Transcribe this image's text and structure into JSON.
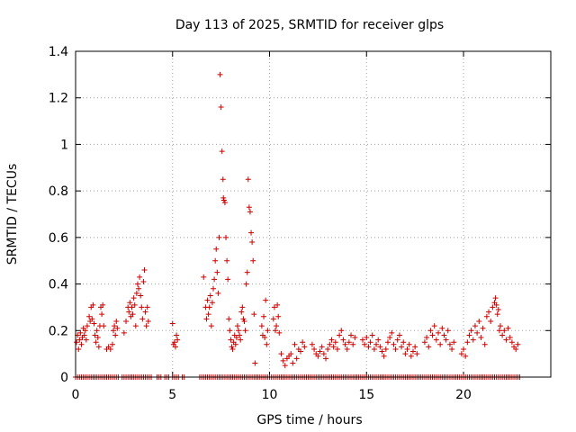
{
  "chart_data": {
    "type": "scatter",
    "title": "Day 113 of 2025, SRMTID for receiver glps",
    "xlabel": "GPS time / hours",
    "ylabel": "SRMTID / TECUs",
    "xlim": [
      0,
      24.5
    ],
    "ylim": [
      0,
      1.4
    ],
    "x_ticks": [
      0,
      5,
      10,
      15,
      20
    ],
    "x_tick_labels": [
      "0",
      "5",
      "10",
      "15",
      "20"
    ],
    "y_ticks": [
      0,
      0.2,
      0.4,
      0.6,
      0.8,
      1.0,
      1.2,
      1.4
    ],
    "y_tick_labels": [
      "0",
      "0.2",
      "0.4",
      "0.6",
      "0.8",
      "1",
      "1.2",
      "1.4"
    ],
    "grid": true,
    "marker": "+",
    "series": [
      {
        "name": "SRMTID",
        "color": "#cc0000",
        "points": [
          [
            0.05,
            0.15
          ],
          [
            0.1,
            0.18
          ],
          [
            0.15,
            0.12
          ],
          [
            0.2,
            0.16
          ],
          [
            0.25,
            0.19
          ],
          [
            0.3,
            0.14
          ],
          [
            0.35,
            0.17
          ],
          [
            0.4,
            0.21
          ],
          [
            0.45,
            0.18
          ],
          [
            0.5,
            0.2
          ],
          [
            0.55,
            0.16
          ],
          [
            0.6,
            0.22
          ],
          [
            0.7,
            0.26
          ],
          [
            0.75,
            0.24
          ],
          [
            0.8,
            0.3
          ],
          [
            0.85,
            0.25
          ],
          [
            0.9,
            0.31
          ],
          [
            0.95,
            0.23
          ],
          [
            1.0,
            0.18
          ],
          [
            1.05,
            0.15
          ],
          [
            1.1,
            0.2
          ],
          [
            1.15,
            0.17
          ],
          [
            1.2,
            0.13
          ],
          [
            1.25,
            0.22
          ],
          [
            1.3,
            0.3
          ],
          [
            1.35,
            0.27
          ],
          [
            1.4,
            0.31
          ],
          [
            1.45,
            0.22
          ],
          [
            1.6,
            0.12
          ],
          [
            1.7,
            0.13
          ],
          [
            1.8,
            0.12
          ],
          [
            1.9,
            0.14
          ],
          [
            1.95,
            0.2
          ],
          [
            2.0,
            0.22
          ],
          [
            2.05,
            0.18
          ],
          [
            2.1,
            0.24
          ],
          [
            2.15,
            0.21
          ],
          [
            2.5,
            0.19
          ],
          [
            2.6,
            0.24
          ],
          [
            2.7,
            0.3
          ],
          [
            2.75,
            0.28
          ],
          [
            2.8,
            0.32
          ],
          [
            2.85,
            0.26
          ],
          [
            2.9,
            0.3
          ],
          [
            2.95,
            0.27
          ],
          [
            3.0,
            0.34
          ],
          [
            3.05,
            0.31
          ],
          [
            3.1,
            0.22
          ],
          [
            3.15,
            0.36
          ],
          [
            3.2,
            0.4
          ],
          [
            3.25,
            0.38
          ],
          [
            3.3,
            0.43
          ],
          [
            3.35,
            0.35
          ],
          [
            3.4,
            0.3
          ],
          [
            3.45,
            0.25
          ],
          [
            3.5,
            0.41
          ],
          [
            3.55,
            0.46
          ],
          [
            3.6,
            0.28
          ],
          [
            3.65,
            0.22
          ],
          [
            3.7,
            0.3
          ],
          [
            3.75,
            0.24
          ],
          [
            5.0,
            0.23
          ],
          [
            5.05,
            0.14
          ],
          [
            5.1,
            0.15
          ],
          [
            5.15,
            0.13
          ],
          [
            5.2,
            0.18
          ],
          [
            5.25,
            0.16
          ],
          [
            6.6,
            0.43
          ],
          [
            6.7,
            0.3
          ],
          [
            6.75,
            0.25
          ],
          [
            6.8,
            0.33
          ],
          [
            6.85,
            0.27
          ],
          [
            6.9,
            0.3
          ],
          [
            6.95,
            0.35
          ],
          [
            7.0,
            0.22
          ],
          [
            7.05,
            0.32
          ],
          [
            7.1,
            0.38
          ],
          [
            7.15,
            0.42
          ],
          [
            7.2,
            0.5
          ],
          [
            7.25,
            0.55
          ],
          [
            7.3,
            0.45
          ],
          [
            7.35,
            0.36
          ],
          [
            7.4,
            0.6
          ],
          [
            7.45,
            1.3
          ],
          [
            7.5,
            1.16
          ],
          [
            7.55,
            0.97
          ],
          [
            7.6,
            0.85
          ],
          [
            7.62,
            0.77
          ],
          [
            7.65,
            0.76
          ],
          [
            7.7,
            0.75
          ],
          [
            7.75,
            0.6
          ],
          [
            7.8,
            0.5
          ],
          [
            7.85,
            0.42
          ],
          [
            7.9,
            0.25
          ],
          [
            7.95,
            0.2
          ],
          [
            8.0,
            0.16
          ],
          [
            8.05,
            0.13
          ],
          [
            8.1,
            0.12
          ],
          [
            8.15,
            0.15
          ],
          [
            8.2,
            0.18
          ],
          [
            8.25,
            0.14
          ],
          [
            8.3,
            0.17
          ],
          [
            8.35,
            0.22
          ],
          [
            8.4,
            0.2
          ],
          [
            8.45,
            0.18
          ],
          [
            8.5,
            0.16
          ],
          [
            8.55,
            0.28
          ],
          [
            8.6,
            0.3
          ],
          [
            8.65,
            0.25
          ],
          [
            8.7,
            0.24
          ],
          [
            8.75,
            0.2
          ],
          [
            8.8,
            0.4
          ],
          [
            8.85,
            0.45
          ],
          [
            8.9,
            0.85
          ],
          [
            8.95,
            0.73
          ],
          [
            9.0,
            0.71
          ],
          [
            9.05,
            0.62
          ],
          [
            9.1,
            0.58
          ],
          [
            9.15,
            0.5
          ],
          [
            9.2,
            0.27
          ],
          [
            9.25,
            0.06
          ],
          [
            9.6,
            0.22
          ],
          [
            9.65,
            0.18
          ],
          [
            9.7,
            0.26
          ],
          [
            9.75,
            0.17
          ],
          [
            9.8,
            0.33
          ],
          [
            9.85,
            0.14
          ],
          [
            9.9,
            0.2
          ],
          [
            10.2,
            0.25
          ],
          [
            10.25,
            0.3
          ],
          [
            10.3,
            0.2
          ],
          [
            10.35,
            0.22
          ],
          [
            10.4,
            0.31
          ],
          [
            10.45,
            0.26
          ],
          [
            10.5,
            0.19
          ],
          [
            10.6,
            0.1
          ],
          [
            10.7,
            0.07
          ],
          [
            10.8,
            0.05
          ],
          [
            10.9,
            0.08
          ],
          [
            11.0,
            0.09
          ],
          [
            11.1,
            0.1
          ],
          [
            11.2,
            0.06
          ],
          [
            11.3,
            0.14
          ],
          [
            11.4,
            0.08
          ],
          [
            11.5,
            0.12
          ],
          [
            11.6,
            0.11
          ],
          [
            11.7,
            0.15
          ],
          [
            11.8,
            0.13
          ],
          [
            12.2,
            0.14
          ],
          [
            12.3,
            0.12
          ],
          [
            12.4,
            0.1
          ],
          [
            12.5,
            0.09
          ],
          [
            12.6,
            0.11
          ],
          [
            12.7,
            0.13
          ],
          [
            12.8,
            0.1
          ],
          [
            12.9,
            0.08
          ],
          [
            13.0,
            0.12
          ],
          [
            13.1,
            0.14
          ],
          [
            13.2,
            0.16
          ],
          [
            13.3,
            0.13
          ],
          [
            13.4,
            0.15
          ],
          [
            13.5,
            0.12
          ],
          [
            13.6,
            0.18
          ],
          [
            13.7,
            0.2
          ],
          [
            13.8,
            0.16
          ],
          [
            13.9,
            0.14
          ],
          [
            14.0,
            0.12
          ],
          [
            14.1,
            0.15
          ],
          [
            14.2,
            0.18
          ],
          [
            14.3,
            0.14
          ],
          [
            14.4,
            0.17
          ],
          [
            14.8,
            0.16
          ],
          [
            14.9,
            0.14
          ],
          [
            15.0,
            0.17
          ],
          [
            15.1,
            0.13
          ],
          [
            15.2,
            0.15
          ],
          [
            15.3,
            0.18
          ],
          [
            15.4,
            0.12
          ],
          [
            15.5,
            0.14
          ],
          [
            15.6,
            0.16
          ],
          [
            15.7,
            0.13
          ],
          [
            15.8,
            0.11
          ],
          [
            15.9,
            0.09
          ],
          [
            16.0,
            0.12
          ],
          [
            16.1,
            0.15
          ],
          [
            16.2,
            0.17
          ],
          [
            16.3,
            0.19
          ],
          [
            16.4,
            0.14
          ],
          [
            16.5,
            0.12
          ],
          [
            16.6,
            0.16
          ],
          [
            16.7,
            0.18
          ],
          [
            16.8,
            0.13
          ],
          [
            16.9,
            0.15
          ],
          [
            17.0,
            0.1
          ],
          [
            17.1,
            0.12
          ],
          [
            17.2,
            0.14
          ],
          [
            17.3,
            0.09
          ],
          [
            17.4,
            0.11
          ],
          [
            17.5,
            0.13
          ],
          [
            17.6,
            0.1
          ],
          [
            18.0,
            0.15
          ],
          [
            18.1,
            0.17
          ],
          [
            18.2,
            0.13
          ],
          [
            18.3,
            0.2
          ],
          [
            18.4,
            0.18
          ],
          [
            18.5,
            0.22
          ],
          [
            18.6,
            0.16
          ],
          [
            18.7,
            0.19
          ],
          [
            18.8,
            0.14
          ],
          [
            18.9,
            0.21
          ],
          [
            19.0,
            0.18
          ],
          [
            19.1,
            0.16
          ],
          [
            19.2,
            0.2
          ],
          [
            19.3,
            0.14
          ],
          [
            19.4,
            0.12
          ],
          [
            19.5,
            0.15
          ],
          [
            19.9,
            0.1
          ],
          [
            20.0,
            0.12
          ],
          [
            20.1,
            0.09
          ],
          [
            20.2,
            0.15
          ],
          [
            20.3,
            0.18
          ],
          [
            20.4,
            0.2
          ],
          [
            20.5,
            0.16
          ],
          [
            20.6,
            0.22
          ],
          [
            20.7,
            0.19
          ],
          [
            20.8,
            0.24
          ],
          [
            20.9,
            0.17
          ],
          [
            21.0,
            0.21
          ],
          [
            21.1,
            0.14
          ],
          [
            21.2,
            0.26
          ],
          [
            21.3,
            0.28
          ],
          [
            21.4,
            0.24
          ],
          [
            21.5,
            0.3
          ],
          [
            21.6,
            0.32
          ],
          [
            21.65,
            0.34
          ],
          [
            21.7,
            0.31
          ],
          [
            21.75,
            0.27
          ],
          [
            21.8,
            0.29
          ],
          [
            21.85,
            0.2
          ],
          [
            21.9,
            0.22
          ],
          [
            22.0,
            0.18
          ],
          [
            22.1,
            0.2
          ],
          [
            22.2,
            0.16
          ],
          [
            22.3,
            0.21
          ],
          [
            22.4,
            0.17
          ],
          [
            22.5,
            0.15
          ],
          [
            22.6,
            0.13
          ],
          [
            22.7,
            0.12
          ],
          [
            22.8,
            0.14
          ]
        ],
        "zero_baseline_segments": [
          [
            0.0,
            1.5
          ],
          [
            1.6,
            2.2
          ],
          [
            2.4,
            3.9
          ],
          [
            4.2,
            4.4
          ],
          [
            4.6,
            4.8
          ],
          [
            5.0,
            5.3
          ],
          [
            5.5,
            5.6
          ],
          [
            6.4,
            9.4
          ],
          [
            9.5,
            10.6
          ],
          [
            10.7,
            22.9
          ]
        ]
      }
    ]
  }
}
